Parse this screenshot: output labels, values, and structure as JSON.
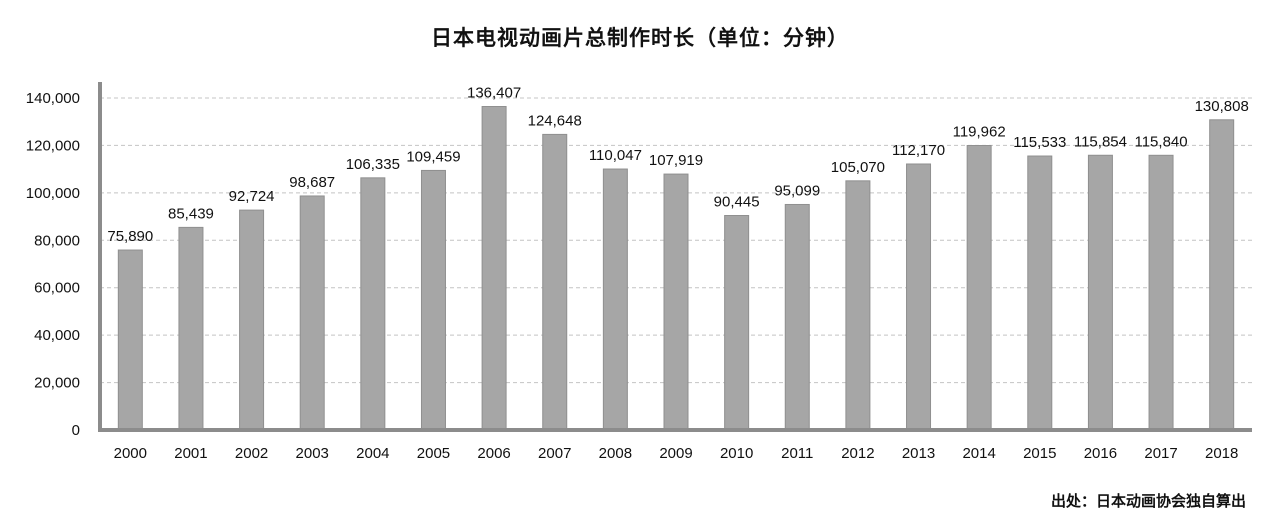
{
  "chart_data": {
    "type": "bar",
    "title": "日本电视动画片总制作时长（单位：分钟）",
    "xlabel": "",
    "ylabel": "",
    "categories": [
      "2000",
      "2001",
      "2002",
      "2003",
      "2004",
      "2005",
      "2006",
      "2007",
      "2008",
      "2009",
      "2010",
      "2011",
      "2012",
      "2013",
      "2014",
      "2015",
      "2016",
      "2017",
      "2018"
    ],
    "values": [
      75890,
      85439,
      92724,
      98687,
      106335,
      109459,
      136407,
      124648,
      110047,
      107919,
      90445,
      95099,
      105070,
      112170,
      119962,
      115533,
      115854,
      115840,
      130808
    ],
    "value_labels": [
      "75,890",
      "85,439",
      "92,724",
      "98,687",
      "106,335",
      "109,459",
      "136,407",
      "124,648",
      "110,047",
      "107,919",
      "90,445",
      "95,099",
      "105,070",
      "112,170",
      "119,962",
      "115,533",
      "115,854",
      "115,840",
      "130,808"
    ],
    "ylim": [
      0,
      140000
    ],
    "yticks": [
      0,
      20000,
      40000,
      60000,
      80000,
      100000,
      120000,
      140000
    ],
    "ytick_labels": [
      "0",
      "20,000",
      "40,000",
      "60,000",
      "80,000",
      "100,000",
      "120,000",
      "140,000"
    ],
    "grid": "horizontal dashed",
    "legend": "none",
    "colors": {
      "bar_fill": "#a6a6a6",
      "bar_stroke": "#8f8f8f",
      "axis": "#8c8c8c",
      "grid": "#c4c4c4",
      "text": "#111111"
    }
  },
  "source": "出处：日本动画协会独自算出"
}
